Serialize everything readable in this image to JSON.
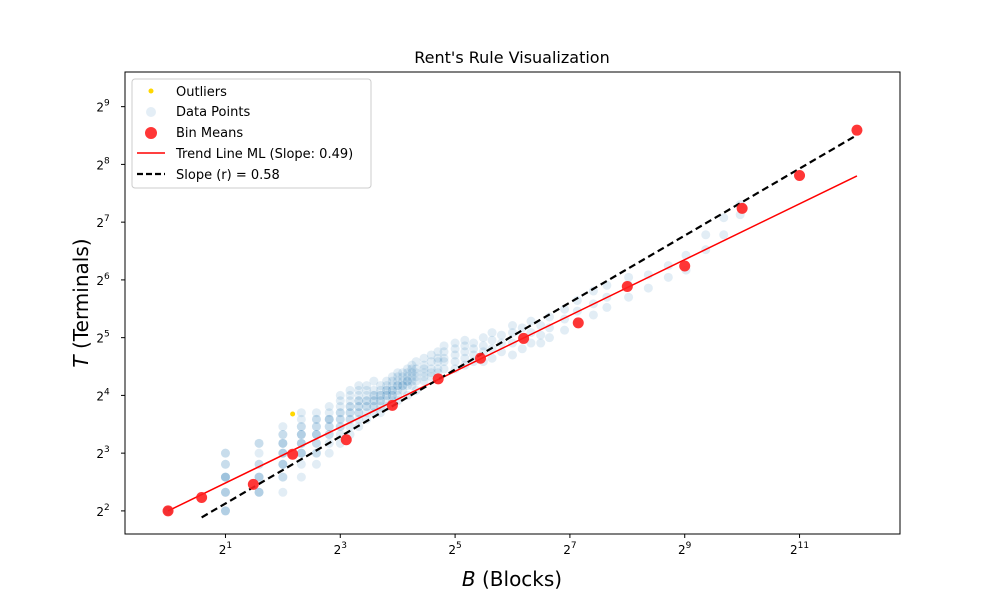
{
  "chart_data": {
    "type": "scatter",
    "title": "Rent's Rule Visualization",
    "xlabel_var": "B",
    "xlabel_rest": " (Blocks)",
    "ylabel_var": "T",
    "ylabel_rest": " (Terminals)",
    "scale": "log2",
    "xlim_log2": [
      -0.75,
      12.75
    ],
    "ylim_log2": [
      1.6,
      9.6
    ],
    "x_ticks_log2": [
      1,
      3,
      5,
      7,
      9,
      11
    ],
    "y_ticks_log2": [
      2,
      3,
      4,
      5,
      6,
      7,
      8,
      9
    ],
    "grid": false,
    "legend_placement": "top-left",
    "colors": {
      "outliers": "#ffd700",
      "data_points": "#1f77b4",
      "bin_means": "#ff2020",
      "trend_ml": "#ff0000",
      "slope_line": "#000000"
    },
    "legend": [
      {
        "key": "outliers",
        "label": "Outliers"
      },
      {
        "key": "data_points",
        "label": "Data Points"
      },
      {
        "key": "bin_means",
        "label": "Bin Means"
      },
      {
        "key": "trend_ml",
        "label": "Trend Line ML (Slope: 0.49)"
      },
      {
        "key": "slope_line",
        "label": "Slope (r) = 0.58"
      }
    ],
    "series": [
      {
        "name": "Outliers",
        "points": [
          [
            4.5,
            12.8
          ]
        ]
      },
      {
        "name": "Data Points",
        "points": [
          [
            1,
            4
          ],
          [
            1,
            4
          ],
          [
            1,
            4
          ],
          [
            1,
            4
          ],
          [
            1,
            4
          ],
          [
            2,
            4
          ],
          [
            2,
            4
          ],
          [
            2,
            5
          ],
          [
            2,
            5
          ],
          [
            2,
            6
          ],
          [
            2,
            6
          ],
          [
            2,
            6
          ],
          [
            2,
            7
          ],
          [
            2,
            8
          ],
          [
            2,
            8
          ],
          [
            2,
            4
          ],
          [
            2,
            5
          ],
          [
            2,
            6
          ],
          [
            2,
            7
          ],
          [
            3,
            5
          ],
          [
            3,
            5
          ],
          [
            3,
            6
          ],
          [
            3,
            6
          ],
          [
            3,
            7
          ],
          [
            3,
            7
          ],
          [
            3,
            8
          ],
          [
            3,
            9
          ],
          [
            3,
            9
          ],
          [
            3,
            6
          ],
          [
            3,
            5
          ],
          [
            4,
            5
          ],
          [
            4,
            6
          ],
          [
            4,
            6
          ],
          [
            4,
            7
          ],
          [
            4,
            7
          ],
          [
            4,
            8
          ],
          [
            4,
            8
          ],
          [
            4,
            9
          ],
          [
            4,
            9
          ],
          [
            4,
            10
          ],
          [
            4,
            10
          ],
          [
            4,
            11
          ],
          [
            4,
            7
          ],
          [
            4,
            8
          ],
          [
            4,
            9
          ],
          [
            5,
            6
          ],
          [
            5,
            7
          ],
          [
            5,
            8
          ],
          [
            5,
            8
          ],
          [
            5,
            9
          ],
          [
            5,
            9
          ],
          [
            5,
            10
          ],
          [
            5,
            10
          ],
          [
            5,
            11
          ],
          [
            5,
            11
          ],
          [
            5,
            12
          ],
          [
            5,
            13
          ],
          [
            5,
            8
          ],
          [
            5,
            9
          ],
          [
            5,
            10
          ],
          [
            6,
            7
          ],
          [
            6,
            8
          ],
          [
            6,
            8
          ],
          [
            6,
            9
          ],
          [
            6,
            10
          ],
          [
            6,
            10
          ],
          [
            6,
            11
          ],
          [
            6,
            12
          ],
          [
            6,
            12
          ],
          [
            6,
            13
          ],
          [
            6,
            9
          ],
          [
            6,
            10
          ],
          [
            6,
            11
          ],
          [
            7,
            8
          ],
          [
            7,
            9
          ],
          [
            7,
            10
          ],
          [
            7,
            11
          ],
          [
            7,
            12
          ],
          [
            7,
            12
          ],
          [
            7,
            13
          ],
          [
            7,
            14
          ],
          [
            7,
            10
          ],
          [
            7,
            11
          ],
          [
            7,
            12
          ],
          [
            8,
            9
          ],
          [
            8,
            10
          ],
          [
            8,
            11
          ],
          [
            8,
            12
          ],
          [
            8,
            13
          ],
          [
            8,
            14
          ],
          [
            8,
            15
          ],
          [
            8,
            16
          ],
          [
            8,
            11
          ],
          [
            8,
            12
          ],
          [
            8,
            13
          ],
          [
            9,
            10
          ],
          [
            9,
            11
          ],
          [
            9,
            12
          ],
          [
            9,
            13
          ],
          [
            9,
            14
          ],
          [
            9,
            15
          ],
          [
            9,
            16
          ],
          [
            9,
            17
          ],
          [
            9,
            12
          ],
          [
            9,
            13
          ],
          [
            9,
            14
          ],
          [
            10,
            11
          ],
          [
            10,
            12
          ],
          [
            10,
            13
          ],
          [
            10,
            14
          ],
          [
            10,
            15
          ],
          [
            10,
            16
          ],
          [
            10,
            17
          ],
          [
            10,
            18
          ],
          [
            10,
            13
          ],
          [
            10,
            14
          ],
          [
            10,
            15
          ],
          [
            11,
            12
          ],
          [
            11,
            13
          ],
          [
            11,
            14
          ],
          [
            11,
            15
          ],
          [
            11,
            16
          ],
          [
            11,
            17
          ],
          [
            11,
            18
          ],
          [
            11,
            14
          ],
          [
            11,
            15
          ],
          [
            12,
            13
          ],
          [
            12,
            14
          ],
          [
            12,
            15
          ],
          [
            12,
            16
          ],
          [
            12,
            17
          ],
          [
            12,
            19
          ],
          [
            12,
            14
          ],
          [
            12,
            15
          ],
          [
            12,
            16
          ],
          [
            13,
            13
          ],
          [
            13,
            14
          ],
          [
            13,
            15
          ],
          [
            13,
            16
          ],
          [
            13,
            17
          ],
          [
            13,
            18
          ],
          [
            13,
            15
          ],
          [
            13,
            16
          ],
          [
            14,
            14
          ],
          [
            14,
            15
          ],
          [
            14,
            16
          ],
          [
            14,
            17
          ],
          [
            14,
            18
          ],
          [
            14,
            19
          ],
          [
            14,
            16
          ],
          [
            14,
            17
          ],
          [
            15,
            15
          ],
          [
            15,
            16
          ],
          [
            15,
            17
          ],
          [
            15,
            18
          ],
          [
            15,
            19
          ],
          [
            15,
            20
          ],
          [
            15,
            16
          ],
          [
            15,
            17
          ],
          [
            16,
            15
          ],
          [
            16,
            16
          ],
          [
            16,
            17
          ],
          [
            16,
            18
          ],
          [
            16,
            19
          ],
          [
            16,
            20
          ],
          [
            16,
            21
          ],
          [
            16,
            18
          ],
          [
            17,
            17
          ],
          [
            17,
            18
          ],
          [
            17,
            19
          ],
          [
            17,
            20
          ],
          [
            17,
            21
          ],
          [
            17,
            18
          ],
          [
            18,
            16
          ],
          [
            18,
            18
          ],
          [
            18,
            19
          ],
          [
            18,
            20
          ],
          [
            18,
            21
          ],
          [
            18,
            22
          ],
          [
            18,
            19
          ],
          [
            19,
            18
          ],
          [
            19,
            19
          ],
          [
            19,
            20
          ],
          [
            19,
            21
          ],
          [
            19,
            22
          ],
          [
            19,
            23
          ],
          [
            20,
            17
          ],
          [
            20,
            19
          ],
          [
            20,
            20
          ],
          [
            20,
            21
          ],
          [
            20,
            22
          ],
          [
            20,
            24
          ],
          [
            22,
            19
          ],
          [
            22,
            20
          ],
          [
            22,
            21
          ],
          [
            22,
            22
          ],
          [
            22,
            23
          ],
          [
            22,
            25
          ],
          [
            24,
            20
          ],
          [
            24,
            21
          ],
          [
            24,
            22
          ],
          [
            24,
            24
          ],
          [
            24,
            26
          ],
          [
            26,
            21
          ],
          [
            26,
            22
          ],
          [
            26,
            24
          ],
          [
            26,
            25
          ],
          [
            26,
            27
          ],
          [
            28,
            22
          ],
          [
            28,
            24
          ],
          [
            28,
            25
          ],
          [
            28,
            27
          ],
          [
            28,
            29
          ],
          [
            32,
            22
          ],
          [
            32,
            24
          ],
          [
            32,
            26
          ],
          [
            32,
            28
          ],
          [
            32,
            30
          ],
          [
            36,
            23
          ],
          [
            36,
            25
          ],
          [
            36,
            27
          ],
          [
            36,
            29
          ],
          [
            36,
            31
          ],
          [
            40,
            24
          ],
          [
            40,
            26
          ],
          [
            40,
            28
          ],
          [
            40,
            30
          ],
          [
            45,
            24
          ],
          [
            45,
            27
          ],
          [
            45,
            29
          ],
          [
            45,
            32
          ],
          [
            50,
            25
          ],
          [
            50,
            28
          ],
          [
            50,
            31
          ],
          [
            50,
            34
          ],
          [
            56,
            27
          ],
          [
            56,
            30
          ],
          [
            56,
            33
          ],
          [
            64,
            26
          ],
          [
            64,
            30
          ],
          [
            64,
            34
          ],
          [
            64,
            37
          ],
          [
            72,
            28
          ],
          [
            72,
            32
          ],
          [
            72,
            36
          ],
          [
            80,
            30
          ],
          [
            80,
            34
          ],
          [
            80,
            39
          ],
          [
            90,
            30
          ],
          [
            90,
            33
          ],
          [
            90,
            37
          ],
          [
            100,
            32
          ],
          [
            100,
            36
          ],
          [
            100,
            41
          ],
          [
            120,
            35
          ],
          [
            120,
            40
          ],
          [
            120,
            45
          ],
          [
            140,
            38
          ],
          [
            140,
            44
          ],
          [
            140,
            50
          ],
          [
            170,
            42
          ],
          [
            170,
            48
          ],
          [
            170,
            56
          ],
          [
            200,
            46
          ],
          [
            200,
            52
          ],
          [
            200,
            60
          ],
          [
            260,
            52
          ],
          [
            260,
            60
          ],
          [
            260,
            66
          ],
          [
            330,
            58
          ],
          [
            330,
            68
          ],
          [
            420,
            66
          ],
          [
            420,
            76
          ],
          [
            520,
            72
          ],
          [
            520,
            86
          ],
          [
            660,
            92
          ],
          [
            660,
            110
          ],
          [
            820,
            110
          ],
          [
            820,
            135
          ],
          [
            1000,
            140
          ],
          [
            1000,
            158
          ]
        ]
      },
      {
        "name": "Bin Means",
        "points": [
          [
            1,
            4
          ],
          [
            1.5,
            4.7
          ],
          [
            2.8,
            5.5
          ],
          [
            4.5,
            7.9
          ],
          [
            8.6,
            9.4
          ],
          [
            15.0,
            14.2
          ],
          [
            26.1,
            19.5
          ],
          [
            43.5,
            25.0
          ],
          [
            73.2,
            31.7
          ],
          [
            141.6,
            38.2
          ],
          [
            256,
            59.1
          ],
          [
            512,
            75.6
          ],
          [
            1024,
            151
          ],
          [
            2048,
            224
          ],
          [
            4096,
            386
          ]
        ]
      }
    ],
    "lines": [
      {
        "name": "Trend Line ML (Slope: 0.49)",
        "x": [
          1,
          4096
        ],
        "y": [
          4,
          223
        ]
      },
      {
        "name": "Slope (r) = 0.58",
        "x": [
          1.5,
          4096
        ],
        "y": [
          3.7,
          364
        ]
      }
    ]
  }
}
